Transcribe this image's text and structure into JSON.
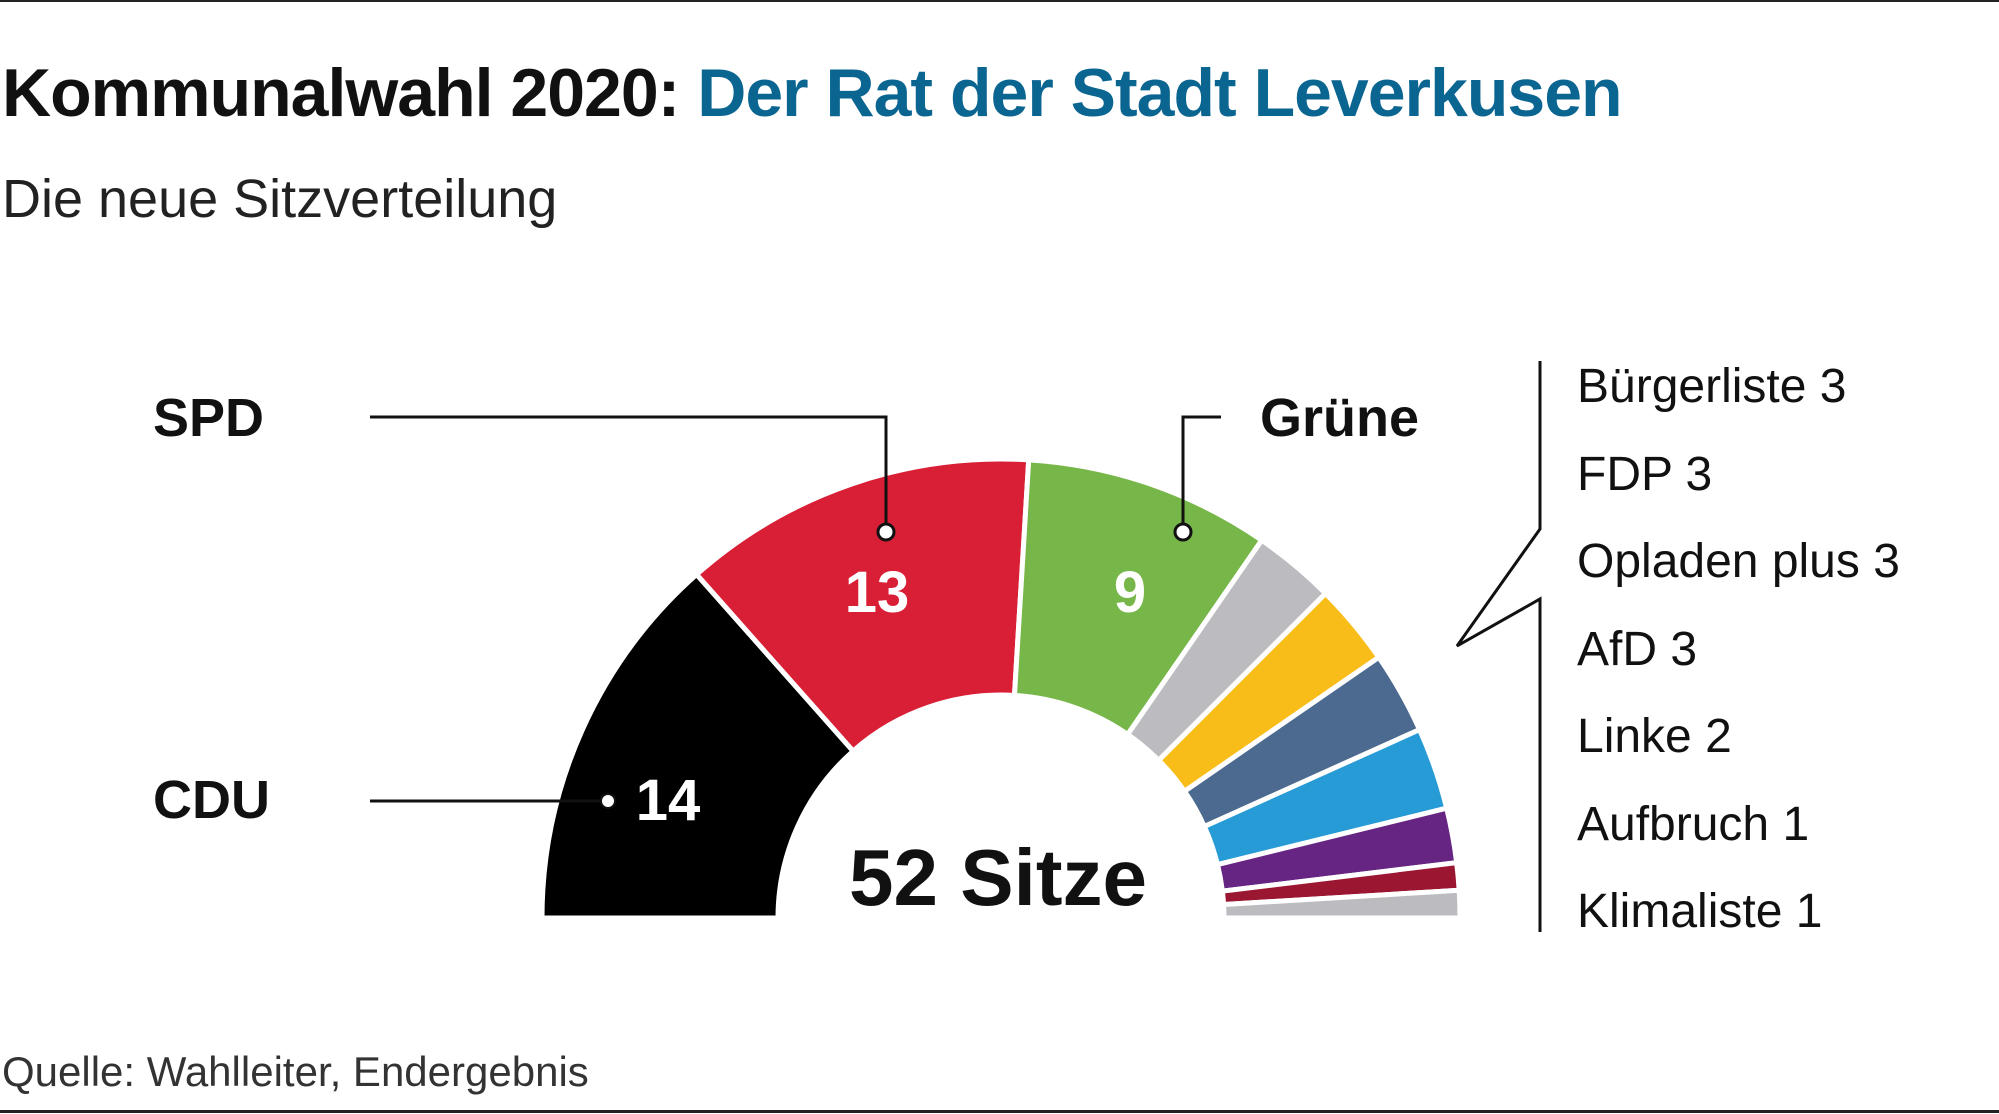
{
  "title_part1": "Kommunalwahl 2020:",
  "title_part2": "Der Rat der Stadt Leverkusen",
  "subtitle": "Die neue Sitzverteilung",
  "source": "Quelle: Wahlleiter, Endergebnis",
  "colors": {
    "accent": "#0b6591"
  },
  "chart_data": {
    "type": "pie",
    "subtype": "semicircle-parliament",
    "title": "Kommunalwahl 2020: Der Rat der Stadt Leverkusen",
    "center_label": "52 Sitze",
    "total": 52,
    "series": [
      {
        "name": "CDU",
        "value": 14,
        "color": "#000000",
        "label": "14"
      },
      {
        "name": "SPD",
        "value": 13,
        "color": "#d91f36",
        "label": "13"
      },
      {
        "name": "Grüne",
        "value": 9,
        "color": "#77b74a",
        "label": "9"
      },
      {
        "name": "Bürgerliste",
        "value": 3,
        "color": "#bcbcc0"
      },
      {
        "name": "FDP",
        "value": 3,
        "color": "#f8bd19"
      },
      {
        "name": "Opladen plus",
        "value": 3,
        "color": "#4c6a90"
      },
      {
        "name": "AfD",
        "value": 3,
        "color": "#279bd6"
      },
      {
        "name": "Linke",
        "value": 2,
        "color": "#662483"
      },
      {
        "name": "Aufbruch",
        "value": 1,
        "color": "#9b1631"
      },
      {
        "name": "Klimaliste",
        "value": 1,
        "color": "#bcbcc0"
      }
    ],
    "callout_labels": [
      "CDU",
      "SPD",
      "Grüne"
    ],
    "legend": [
      "Bürgerliste 3",
      "FDP 3",
      "Opladen plus 3",
      "AfD 3",
      "Linke 2",
      "Aufbruch 1",
      "Klimaliste 1"
    ]
  }
}
